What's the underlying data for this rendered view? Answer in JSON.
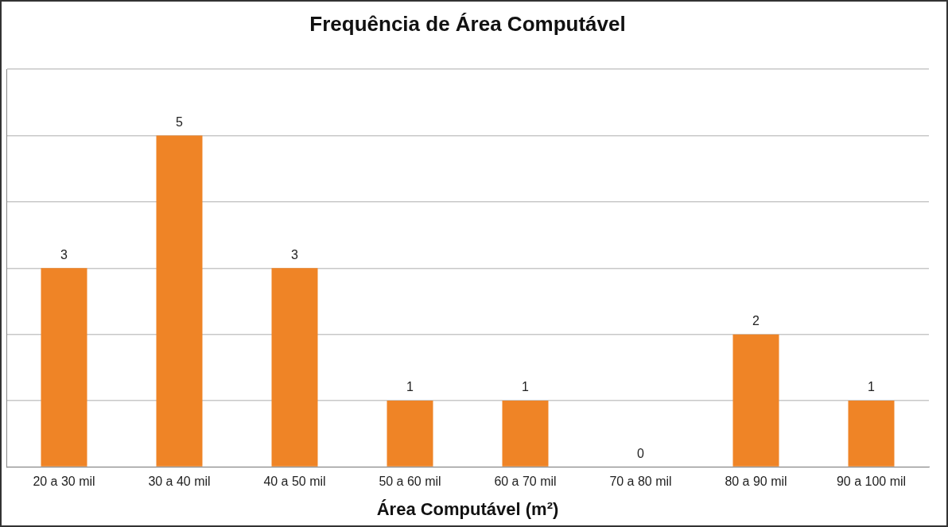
{
  "chart_data": {
    "type": "bar",
    "title": "Frequência de Área Computável",
    "xlabel": "Área Computável (m²)",
    "categories": [
      "20 a 30 mil",
      "30 a 40 mil",
      "40 a 50 mil",
      "50 a 60 mil",
      "60 a 70 mil",
      "70 a 80 mil",
      "80 a 90 mil",
      "90 a 100 mil"
    ],
    "values": [
      3,
      5,
      3,
      1,
      1,
      0,
      2,
      1
    ],
    "color": "#ef8426",
    "ylim": [
      0,
      6
    ],
    "yticks": [
      {
        "value": 0,
        "label": null
      },
      {
        "value": 1,
        "label": null
      },
      {
        "value": 2,
        "label": null
      },
      {
        "value": 3,
        "label": null
      },
      {
        "value": 4,
        "label": null
      },
      {
        "value": 5,
        "label": null
      },
      {
        "value": 6,
        "label": null
      }
    ],
    "grid": "y",
    "legend": false,
    "data_labels": true,
    "tick_labels": "x"
  }
}
